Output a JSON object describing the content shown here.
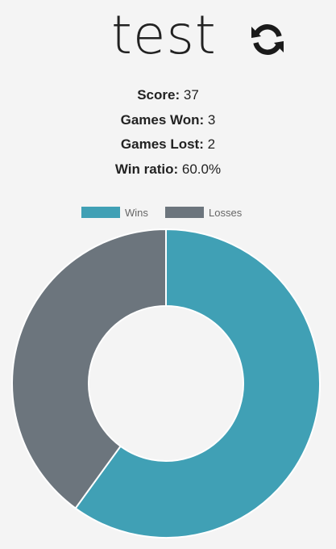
{
  "player": {
    "name": "test"
  },
  "icons": {
    "refresh": "refresh-icon"
  },
  "stats": {
    "score_label": "Score:",
    "score_value": "37",
    "won_label": "Games Won:",
    "won_value": "3",
    "lost_label": "Games Lost:",
    "lost_value": "2",
    "ratio_label": "Win ratio:",
    "ratio_value": "60.0%"
  },
  "colors": {
    "wins": "#40a0b5",
    "losses": "#6c757d",
    "background": "#f4f4f4"
  },
  "chart_data": {
    "type": "pie",
    "variant": "doughnut",
    "categories": [
      "Wins",
      "Losses"
    ],
    "values": [
      3,
      2
    ],
    "legend": "top"
  }
}
